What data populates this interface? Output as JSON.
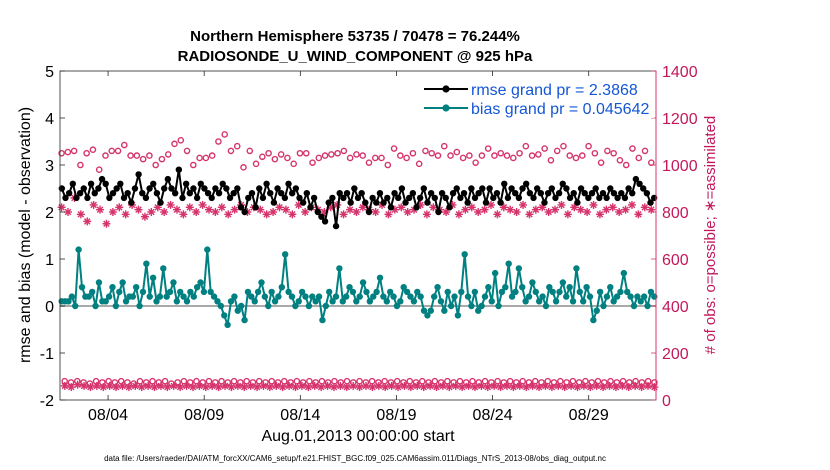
{
  "chart_data": {
    "type": "line",
    "title_line1": "Northern Hemisphere 53735 / 70478 = 76.244%",
    "title_line2": "RADIOSONDE_U_WIND_COMPONENT @ 925 hPa",
    "xlabel": "Aug.01,2013 00:00:00 start",
    "ylabel_left": "rmse and bias (model - observation)",
    "ylabel_right": "# of obs: o=possible; ∗=assimilated",
    "footer": "data file: /Users/raeder/DAI/ATM_forcXX/CAM6_setup/f.e21.FHIST_BGC.f09_025.CAM6assim.011/Diags_NTrS_2013-08/obs_diag_output.nc",
    "x_range_days": [
      0.5,
      31.5
    ],
    "ylim_left": [
      -2,
      5
    ],
    "ylim_right": [
      0,
      1400
    ],
    "x_ticks": [
      {
        "day": 3,
        "label": "08/04"
      },
      {
        "day": 8,
        "label": "08/09"
      },
      {
        "day": 13,
        "label": "08/14"
      },
      {
        "day": 18,
        "label": "08/19"
      },
      {
        "day": 23,
        "label": "08/24"
      },
      {
        "day": 28,
        "label": "08/29"
      }
    ],
    "y_ticks_left": [
      -2,
      -1,
      0,
      1,
      2,
      3,
      4,
      5
    ],
    "y_ticks_right": [
      0,
      200,
      400,
      600,
      800,
      1000,
      1200,
      1400
    ],
    "legend": {
      "position": "top-right",
      "rmse_label": "rmse grand pr = 2.3868",
      "bias_label": "bias grand pr = 0.045642"
    },
    "colors": {
      "rmse": "#000000",
      "bias": "#008080",
      "obs": "#d6336c",
      "zero_line": "#a9a9a9",
      "legend_text": "#1456d6"
    },
    "rmse_values": [
      2.5,
      2.3,
      2.4,
      2.6,
      2.3,
      2.4,
      2.5,
      2.3,
      2.6,
      2.4,
      2.5,
      2.7,
      2.6,
      2.3,
      2.4,
      2.5,
      2.6,
      2.3,
      2.4,
      2.2,
      2.5,
      2.8,
      2.4,
      2.3,
      2.5,
      2.6,
      2.4,
      2.2,
      2.5,
      2.7,
      2.5,
      2.4,
      2.9,
      2.3,
      2.6,
      2.4,
      2.5,
      2.3,
      2.6,
      2.5,
      2.4,
      2.3,
      2.5,
      2.4,
      2.6,
      2.5,
      2.3,
      2.4,
      2.5,
      2.1,
      2.0,
      2.3,
      2.4,
      2.1,
      2.5,
      2.3,
      2.6,
      2.4,
      2.2,
      2.5,
      2.4,
      2.3,
      2.6,
      2.4,
      2.5,
      2.3,
      2.2,
      2.4,
      2.1,
      2.3,
      2.0,
      1.9,
      1.8,
      2.2,
      2.3,
      1.7,
      2.4,
      2.3,
      2.4,
      2.2,
      2.5,
      2.3,
      2.4,
      2.2,
      2.0,
      2.3,
      2.2,
      2.4,
      2.2,
      2.3,
      2.1,
      2.4,
      2.3,
      2.5,
      2.2,
      2.3,
      2.4,
      2.1,
      2.3,
      2.5,
      2.2,
      2.4,
      2.3,
      2.0,
      2.4,
      2.3,
      2.1,
      2.4,
      2.5,
      2.3,
      2.4,
      2.2,
      2.5,
      2.3,
      2.4,
      2.5,
      2.2,
      2.5,
      2.3,
      2.4,
      2.2,
      2.6,
      2.3,
      2.5,
      2.4,
      2.3,
      2.5,
      2.6,
      2.4,
      2.3,
      2.5,
      2.4,
      2.2,
      2.4,
      2.5,
      2.3,
      2.4,
      2.6,
      2.5,
      2.3,
      2.4,
      2.2,
      2.5,
      2.4,
      2.3,
      2.4,
      2.5,
      2.3,
      2.4,
      2.3,
      2.5,
      2.4,
      2.3,
      2.4,
      2.3,
      2.5,
      2.4,
      2.7,
      2.6,
      2.5,
      2.4,
      2.2,
      2.3
    ],
    "bias_values": [
      0.1,
      0.1,
      0.1,
      0.2,
      0.0,
      1.2,
      0.4,
      0.2,
      0.2,
      0.3,
      0.0,
      0.5,
      0.1,
      0.1,
      0.2,
      0.4,
      0.0,
      0.3,
      0.5,
      0.1,
      0.2,
      0.2,
      0.4,
      0.0,
      0.3,
      0.9,
      0.2,
      0.6,
      0.1,
      0.2,
      0.8,
      0.2,
      0.3,
      0.5,
      0.1,
      0.3,
      0.2,
      0.1,
      0.3,
      0.2,
      0.4,
      0.5,
      0.3,
      1.2,
      0.3,
      0.2,
      0.1,
      0.0,
      -0.2,
      -0.4,
      0.1,
      0.2,
      -0.1,
      0.0,
      -0.3,
      0.3,
      0.2,
      0.1,
      0.3,
      0.5,
      0.2,
      0.0,
      0.3,
      0.1,
      0.2,
      0.4,
      1.1,
      0.3,
      0.2,
      0.0,
      0.1,
      0.3,
      0.2,
      0.0,
      0.2,
      0.1,
      0.2,
      -0.3,
      0.0,
      0.3,
      0.1,
      0.2,
      0.8,
      0.1,
      0.2,
      0.4,
      0.3,
      0.1,
      0.2,
      0.5,
      0.3,
      0.1,
      0.2,
      0.3,
      0.6,
      0.2,
      0.1,
      0.3,
      0.2,
      0.0,
      0.1,
      0.4,
      0.3,
      0.2,
      0.1,
      0.3,
      0.2,
      -0.1,
      -0.2,
      -0.1,
      0.2,
      0.4,
      0.1,
      -0.1,
      0.3,
      0.0,
      0.2,
      -0.2,
      0.3,
      1.1,
      0.2,
      0.0,
      0.3,
      -0.1,
      0.0,
      0.2,
      0.4,
      0.1,
      0.7,
      0.0,
      0.3,
      0.4,
      0.9,
      0.2,
      0.3,
      0.8,
      0.4,
      0.1,
      0.2,
      0.5,
      0.3,
      0.1,
      0.2,
      0.0,
      0.4,
      0.3,
      0.1,
      0.3,
      0.5,
      0.2,
      0.4,
      0.1,
      0.8,
      0.3,
      0.1,
      0.4,
      0.2,
      -0.3,
      -0.1,
      0.3,
      0.0,
      0.2,
      0.4,
      0.1,
      0.2,
      0.3,
      0.7,
      0.3,
      0.2,
      0.0,
      0.2,
      0.1,
      0.2,
      0.0,
      0.3,
      0.2
    ],
    "obs_possible_values": [
      1050,
      80,
      1055,
      75,
      1060,
      80,
      1000,
      75,
      1050,
      70,
      1065,
      80,
      980,
      75,
      1040,
      80,
      1060,
      75,
      1060,
      80,
      1085,
      75,
      1040,
      70,
      1040,
      80,
      1025,
      75,
      1040,
      80,
      1000,
      75,
      1025,
      80,
      1045,
      70,
      1090,
      75,
      1105,
      80,
      1060,
      75,
      1000,
      80,
      1030,
      75,
      1030,
      80,
      1040,
      75,
      1100,
      80,
      1130,
      75,
      1060,
      80,
      1080,
      75,
      990,
      80,
      1060,
      75,
      1005,
      80,
      1035,
      75,
      1050,
      80,
      1025,
      75,
      1045,
      80,
      1030,
      75,
      1005,
      80,
      1050,
      75,
      1050,
      80,
      1010,
      75,
      1030,
      80,
      1040,
      75,
      1045,
      80,
      1050,
      75,
      1060,
      80,
      1030,
      75,
      1045,
      80,
      1040,
      75,
      1010,
      80,
      1030,
      75,
      1030,
      80,
      1000,
      75,
      1070,
      80,
      1040,
      75,
      1030,
      80,
      1050,
      75,
      1005,
      80,
      1060,
      75,
      1050,
      80,
      1040,
      75,
      1080,
      80,
      1040,
      75,
      1055,
      80,
      1030,
      75,
      1040,
      80,
      1010,
      75,
      1040,
      80,
      1070,
      75,
      1040,
      80,
      1050,
      75,
      1040,
      80,
      1030,
      75,
      1050,
      80,
      1080,
      75,
      1040,
      80,
      1045,
      75,
      1070,
      80,
      1020,
      75,
      1060,
      80,
      1080,
      75,
      1040,
      80,
      1030,
      75,
      1040,
      80,
      1080,
      75,
      1050,
      80,
      1010,
      75,
      1060,
      80,
      1050,
      75,
      1020,
      80,
      1000,
      75,
      1070,
      80,
      1030,
      75,
      1060,
      80,
      1010,
      75
    ],
    "obs_assimilated_values": [
      820,
      60,
      800,
      55,
      860,
      65,
      790,
      60,
      760,
      55,
      830,
      60,
      810,
      55,
      750,
      60,
      800,
      55,
      820,
      60,
      790,
      55,
      830,
      60,
      810,
      55,
      780,
      60,
      800,
      55,
      820,
      60,
      800,
      55,
      830,
      60,
      810,
      55,
      790,
      60,
      820,
      55,
      800,
      60,
      830,
      55,
      810,
      60,
      800,
      55,
      820,
      60,
      790,
      55,
      810,
      60,
      830,
      55,
      800,
      60,
      820,
      55,
      810,
      60,
      790,
      55,
      800,
      60,
      820,
      55,
      810,
      60,
      790,
      55,
      830,
      60,
      800,
      55,
      820,
      60,
      810,
      55,
      800,
      60,
      820,
      55,
      830,
      60,
      790,
      55,
      810,
      60,
      800,
      55,
      820,
      60,
      810,
      55,
      800,
      60,
      830,
      55,
      790,
      60,
      810,
      55,
      820,
      60,
      800,
      55,
      810,
      60,
      830,
      55,
      790,
      60,
      820,
      55,
      810,
      60,
      800,
      55,
      830,
      60,
      790,
      55,
      810,
      60,
      820,
      55,
      800,
      60,
      810,
      55,
      830,
      60,
      790,
      55,
      820,
      60,
      810,
      55,
      800,
      60,
      830,
      55,
      790,
      60,
      810,
      55,
      820,
      60,
      800,
      55,
      810,
      60,
      830,
      55,
      790,
      60,
      820,
      55,
      810,
      60,
      800,
      55,
      830,
      60,
      790,
      55,
      810,
      60,
      820,
      55,
      800,
      60,
      810,
      55,
      830,
      60,
      790,
      55,
      820,
      60,
      810,
      55
    ]
  }
}
